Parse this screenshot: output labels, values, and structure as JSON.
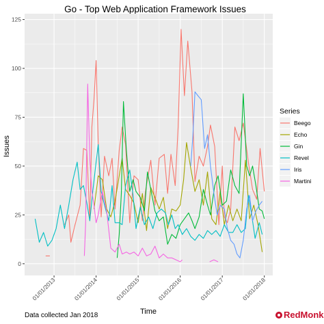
{
  "chart_data": {
    "type": "line",
    "title": "Go - Top Web Application Framework Issues",
    "xlabel": "Time",
    "ylabel": "Issues",
    "ylim": [
      -6,
      128
    ],
    "yticks": [
      0,
      25,
      50,
      75,
      100,
      125
    ],
    "xlim": [
      2012.3,
      2018.2
    ],
    "xticks": [
      {
        "label": "01/01/2013",
        "x": 2013
      },
      {
        "label": "01/01/2014",
        "x": 2014
      },
      {
        "label": "01/01/2015",
        "x": 2015
      },
      {
        "label": "01/01/2016",
        "x": 2016
      },
      {
        "label": "01/01/2017",
        "x": 2017
      },
      {
        "label": "01/01/2018",
        "x": 2018
      }
    ],
    "grid": true,
    "legend": {
      "title": "Series",
      "position": "right"
    },
    "series": [
      {
        "name": "Beego",
        "color": "#F8766D",
        "segments": [
          [
            [
              2012.8,
              4
            ],
            [
              2012.9,
              4
            ]
          ],
          [
            [
              2013.25,
              20
            ],
            [
              2013.35,
              25
            ],
            [
              2013.4,
              11
            ],
            [
              2013.5,
              20
            ],
            [
              2013.62,
              30
            ],
            [
              2013.7,
              59
            ],
            [
              2013.78,
              58
            ],
            [
              2013.85,
              22
            ],
            [
              2013.9,
              70
            ],
            [
              2013.95,
              84
            ],
            [
              2014.0,
              104
            ],
            [
              2014.05,
              62
            ],
            [
              2014.12,
              24
            ],
            [
              2014.2,
              55
            ],
            [
              2014.3,
              45
            ],
            [
              2014.38,
              54
            ],
            [
              2014.45,
              28
            ],
            [
              2014.55,
              58
            ],
            [
              2014.62,
              70
            ],
            [
              2014.7,
              61
            ],
            [
              2014.8,
              21
            ],
            [
              2014.9,
              45
            ],
            [
              2015.0,
              43
            ],
            [
              2015.1,
              22
            ],
            [
              2015.18,
              38
            ],
            [
              2015.3,
              53
            ],
            [
              2015.4,
              30
            ],
            [
              2015.5,
              54
            ],
            [
              2015.62,
              56
            ],
            [
              2015.7,
              36
            ],
            [
              2015.78,
              56
            ],
            [
              2015.88,
              40
            ],
            [
              2015.95,
              70
            ],
            [
              2016.02,
              120
            ],
            [
              2016.1,
              86
            ],
            [
              2016.18,
              114
            ],
            [
              2016.28,
              88
            ],
            [
              2016.35,
              42
            ],
            [
              2016.45,
              55
            ],
            [
              2016.55,
              50
            ],
            [
              2016.65,
              60
            ],
            [
              2016.72,
              71
            ],
            [
              2016.82,
              60
            ],
            [
              2016.92,
              20
            ],
            [
              2017.0,
              50
            ],
            [
              2017.05,
              24
            ],
            [
              2017.12,
              21
            ],
            [
              2017.2,
              28
            ],
            [
              2017.3,
              70
            ],
            [
              2017.4,
              63
            ],
            [
              2017.5,
              72
            ],
            [
              2017.62,
              52
            ],
            [
              2017.72,
              38
            ],
            [
              2017.82,
              33
            ],
            [
              2017.9,
              59
            ],
            [
              2018.0,
              37
            ]
          ]
        ]
      },
      {
        "name": "Echo",
        "color": "#A3A500",
        "segments": [
          [
            [
              2013.95,
              28
            ],
            [
              2014.05,
              45
            ],
            [
              2014.15,
              43
            ],
            [
              2014.25,
              28
            ],
            [
              2014.35,
              24
            ],
            [
              2014.45,
              32
            ],
            [
              2014.55,
              45
            ],
            [
              2014.62,
              54
            ],
            [
              2014.7,
              38
            ],
            [
              2014.8,
              35
            ],
            [
              2014.9,
              31
            ],
            [
              2015.0,
              21
            ],
            [
              2015.1,
              36
            ],
            [
              2015.2,
              17
            ],
            [
              2015.3,
              39
            ],
            [
              2015.4,
              34
            ],
            [
              2015.5,
              28
            ],
            [
              2015.6,
              34
            ],
            [
              2015.7,
              18
            ],
            [
              2015.8,
              28
            ],
            [
              2015.9,
              27
            ],
            [
              2016.0,
              30
            ],
            [
              2016.08,
              43
            ],
            [
              2016.15,
              62
            ],
            [
              2016.25,
              49
            ],
            [
              2016.35,
              37
            ],
            [
              2016.45,
              43
            ],
            [
              2016.55,
              30
            ],
            [
              2016.65,
              47
            ],
            [
              2016.75,
              23
            ],
            [
              2016.85,
              20
            ],
            [
              2016.95,
              37
            ],
            [
              2017.05,
              20
            ],
            [
              2017.15,
              30
            ],
            [
              2017.25,
              22
            ],
            [
              2017.35,
              28
            ],
            [
              2017.45,
              22
            ],
            [
              2017.55,
              53
            ],
            [
              2017.65,
              23
            ],
            [
              2017.75,
              30
            ],
            [
              2017.85,
              20
            ],
            [
              2017.95,
              6
            ]
          ]
        ]
      },
      {
        "name": "Gin",
        "color": "#00BA38",
        "segments": [
          [
            [
              2014.5,
              3
            ],
            [
              2014.55,
              15
            ],
            [
              2014.6,
              36
            ],
            [
              2014.65,
              83
            ],
            [
              2014.72,
              58
            ],
            [
              2014.8,
              37
            ],
            [
              2014.88,
              43
            ],
            [
              2014.95,
              37
            ],
            [
              2015.05,
              34
            ],
            [
              2015.15,
              27
            ],
            [
              2015.22,
              47
            ],
            [
              2015.3,
              38
            ],
            [
              2015.4,
              27
            ],
            [
              2015.5,
              22
            ],
            [
              2015.6,
              24
            ],
            [
              2015.7,
              10
            ],
            [
              2015.8,
              15
            ],
            [
              2015.9,
              13
            ],
            [
              2016.0,
              20
            ],
            [
              2016.1,
              23
            ],
            [
              2016.2,
              26
            ],
            [
              2016.28,
              22
            ],
            [
              2016.35,
              18
            ],
            [
              2016.45,
              24
            ],
            [
              2016.55,
              38
            ],
            [
              2016.65,
              30
            ],
            [
              2016.72,
              25
            ],
            [
              2016.82,
              40
            ],
            [
              2016.9,
              45
            ],
            [
              2017.0,
              30
            ],
            [
              2017.1,
              32
            ],
            [
              2017.2,
              48
            ],
            [
              2017.3,
              40
            ],
            [
              2017.4,
              36
            ],
            [
              2017.5,
              87
            ],
            [
              2017.58,
              50
            ],
            [
              2017.65,
              45
            ],
            [
              2017.72,
              50
            ],
            [
              2017.8,
              40
            ],
            [
              2017.88,
              28
            ],
            [
              2017.95,
              27
            ],
            [
              2018.0,
              23
            ]
          ]
        ]
      },
      {
        "name": "Revel",
        "color": "#00BFC4",
        "segments": [
          [
            [
              2012.55,
              23
            ],
            [
              2012.65,
              11
            ],
            [
              2012.75,
              16
            ],
            [
              2012.85,
              9
            ],
            [
              2012.95,
              12
            ],
            [
              2013.05,
              18
            ],
            [
              2013.15,
              30
            ],
            [
              2013.25,
              18
            ],
            [
              2013.35,
              30
            ],
            [
              2013.45,
              43
            ],
            [
              2013.55,
              52
            ],
            [
              2013.62,
              38
            ],
            [
              2013.7,
              40
            ],
            [
              2013.78,
              31
            ],
            [
              2013.85,
              22
            ],
            [
              2013.92,
              37
            ],
            [
              2014.0,
              52
            ],
            [
              2014.05,
              61
            ],
            [
              2014.12,
              37
            ],
            [
              2014.2,
              30
            ],
            [
              2014.3,
              22
            ],
            [
              2014.38,
              40
            ],
            [
              2014.45,
              21
            ],
            [
              2014.55,
              21
            ],
            [
              2014.62,
              20
            ],
            [
              2014.7,
              40
            ],
            [
              2014.8,
              48
            ],
            [
              2014.88,
              35
            ],
            [
              2014.95,
              18
            ],
            [
              2015.05,
              29
            ],
            [
              2015.15,
              20
            ],
            [
              2015.25,
              24
            ],
            [
              2015.35,
              18
            ],
            [
              2015.45,
              26
            ],
            [
              2015.55,
              28
            ],
            [
              2015.65,
              26
            ],
            [
              2015.72,
              20
            ],
            [
              2015.8,
              25
            ],
            [
              2015.88,
              18
            ],
            [
              2015.95,
              20
            ],
            [
              2016.05,
              15
            ],
            [
              2016.15,
              18
            ],
            [
              2016.25,
              14
            ],
            [
              2016.35,
              12
            ],
            [
              2016.45,
              15
            ],
            [
              2016.55,
              13
            ],
            [
              2016.65,
              17
            ],
            [
              2016.75,
              15
            ],
            [
              2016.85,
              17
            ],
            [
              2016.95,
              14
            ],
            [
              2017.05,
              20
            ],
            [
              2017.15,
              16
            ],
            [
              2017.25,
              16
            ],
            [
              2017.35,
              20
            ],
            [
              2017.45,
              16
            ],
            [
              2017.55,
              18
            ],
            [
              2017.62,
              35
            ],
            [
              2017.7,
              25
            ],
            [
              2017.78,
              13
            ],
            [
              2017.88,
              21
            ],
            [
              2017.95,
              15
            ]
          ]
        ]
      },
      {
        "name": "Iris",
        "color": "#619CFF",
        "segments": [
          [
            [
              2016.25,
              50
            ],
            [
              2016.3,
              65
            ],
            [
              2016.35,
              88
            ],
            [
              2016.42,
              86
            ],
            [
              2016.5,
              84
            ],
            [
              2016.58,
              59
            ],
            [
              2016.65,
              66
            ],
            [
              2016.72,
              50
            ],
            [
              2016.8,
              36
            ],
            [
              2016.88,
              25
            ],
            [
              2016.95,
              30
            ],
            [
              2017.05,
              28
            ],
            [
              2017.12,
              18
            ],
            [
              2017.2,
              12
            ],
            [
              2017.28,
              10
            ],
            [
              2017.35,
              5
            ],
            [
              2017.42,
              3
            ],
            [
              2017.5,
              12
            ],
            [
              2017.58,
              28
            ],
            [
              2017.65,
              35
            ],
            [
              2017.72,
              22
            ],
            [
              2017.8,
              27
            ],
            [
              2017.88,
              30
            ],
            [
              2017.95,
              32
            ]
          ]
        ]
      },
      {
        "name": "Martini",
        "color": "#F564E3",
        "segments": [
          [
            [
              2013.72,
              4
            ],
            [
              2013.75,
              20
            ],
            [
              2013.8,
              92
            ],
            [
              2013.85,
              53
            ],
            [
              2013.9,
              37
            ],
            [
              2013.95,
              30
            ],
            [
              2014.0,
              21
            ],
            [
              2014.05,
              25
            ],
            [
              2014.15,
              37
            ],
            [
              2014.25,
              27
            ],
            [
              2014.35,
              8
            ],
            [
              2014.45,
              6
            ],
            [
              2014.55,
              10
            ],
            [
              2014.62,
              5
            ],
            [
              2014.72,
              6
            ],
            [
              2014.8,
              5
            ],
            [
              2014.9,
              6
            ],
            [
              2015.0,
              4
            ],
            [
              2015.1,
              8
            ],
            [
              2015.2,
              4
            ],
            [
              2015.3,
              5
            ],
            [
              2015.4,
              9
            ],
            [
              2015.5,
              3
            ],
            [
              2015.6,
              5
            ],
            [
              2015.7,
              3
            ],
            [
              2015.8,
              3
            ],
            [
              2015.9,
              2
            ],
            [
              2016.0,
              1
            ],
            [
              2016.05,
              2
            ]
          ],
          [
            [
              2016.7,
              1
            ],
            [
              2016.8,
              2
            ],
            [
              2016.9,
              1
            ]
          ]
        ]
      }
    ]
  },
  "footer": {
    "note": "Data collected Jan 2018",
    "logo_text": "RedMonk"
  }
}
